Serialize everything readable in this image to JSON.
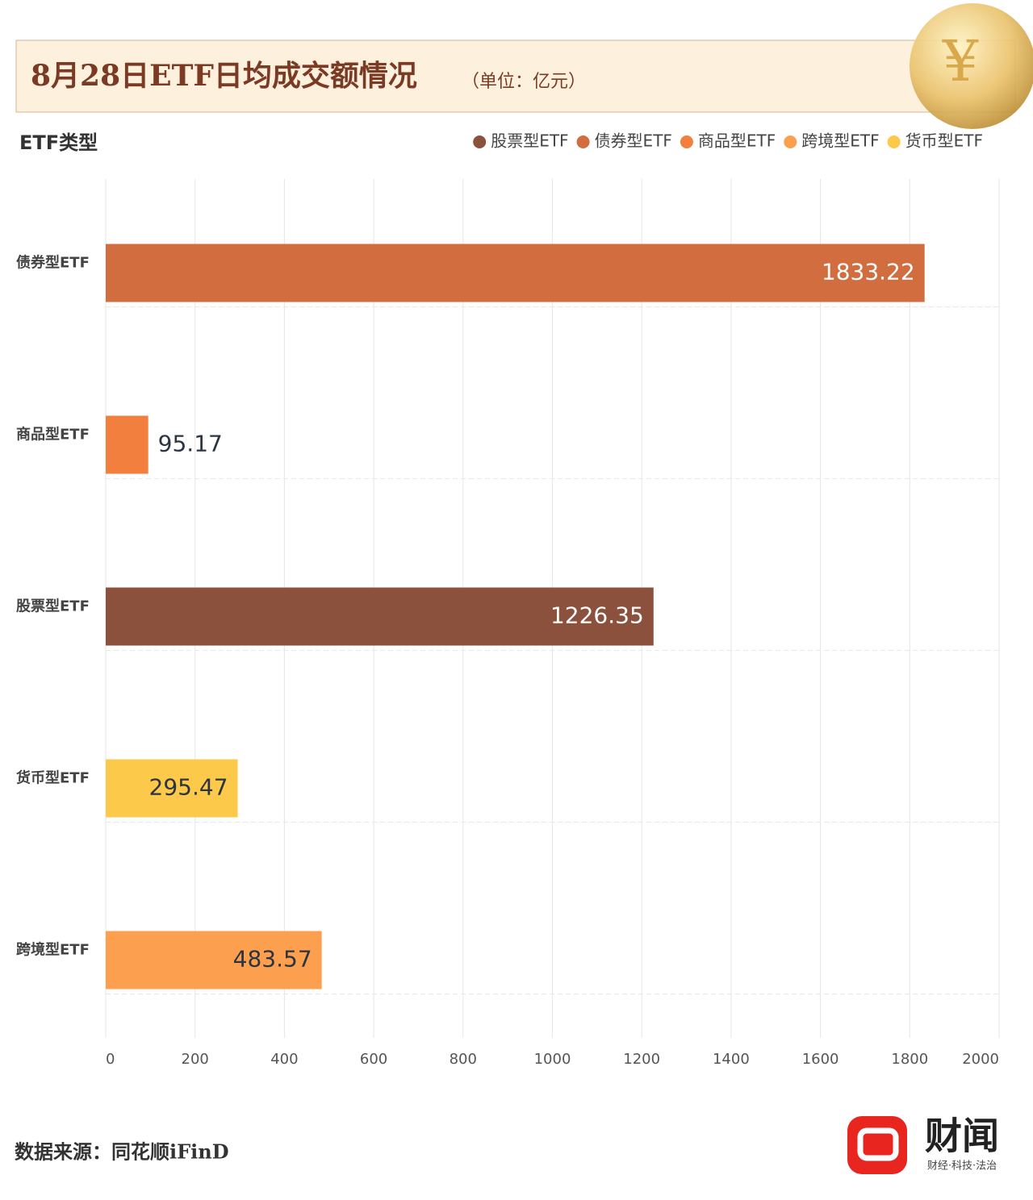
{
  "chart_data": {
    "type": "hbar",
    "title": "8月28日ETF日均成交额情况",
    "subtitle": "（单位：亿元）",
    "y_axis_label": "ETF类型",
    "categories": [
      "债券型ETF",
      "商品型ETF",
      "股票型ETF",
      "货币型ETF",
      "跨境型ETF"
    ],
    "series": [
      {
        "name": "股票型ETF",
        "color": "#8b513d",
        "values": [
          null,
          null,
          1226.35,
          null,
          null
        ]
      },
      {
        "name": "债券型ETF",
        "color": "#d16d3f",
        "values": [
          1833.22,
          null,
          null,
          null,
          null
        ]
      },
      {
        "name": "商品型ETF",
        "color": "#f27f3d",
        "values": [
          null,
          95.17,
          null,
          null,
          null
        ]
      },
      {
        "name": "跨境型ETF",
        "color": "#fca04f",
        "values": [
          null,
          null,
          null,
          null,
          483.57
        ]
      },
      {
        "name": "货币型ETF",
        "color": "#fdc94b",
        "values": [
          null,
          null,
          null,
          295.47,
          null
        ]
      }
    ],
    "xlim": [
      0,
      2000
    ],
    "xticks": [
      0,
      200,
      400,
      600,
      800,
      1000,
      1200,
      1400,
      1600,
      1800,
      2000
    ],
    "grid": true,
    "source": "数据来源：同花顺iFinD",
    "brand": "财闻",
    "brand_tagline": "财经·科技·法治"
  }
}
